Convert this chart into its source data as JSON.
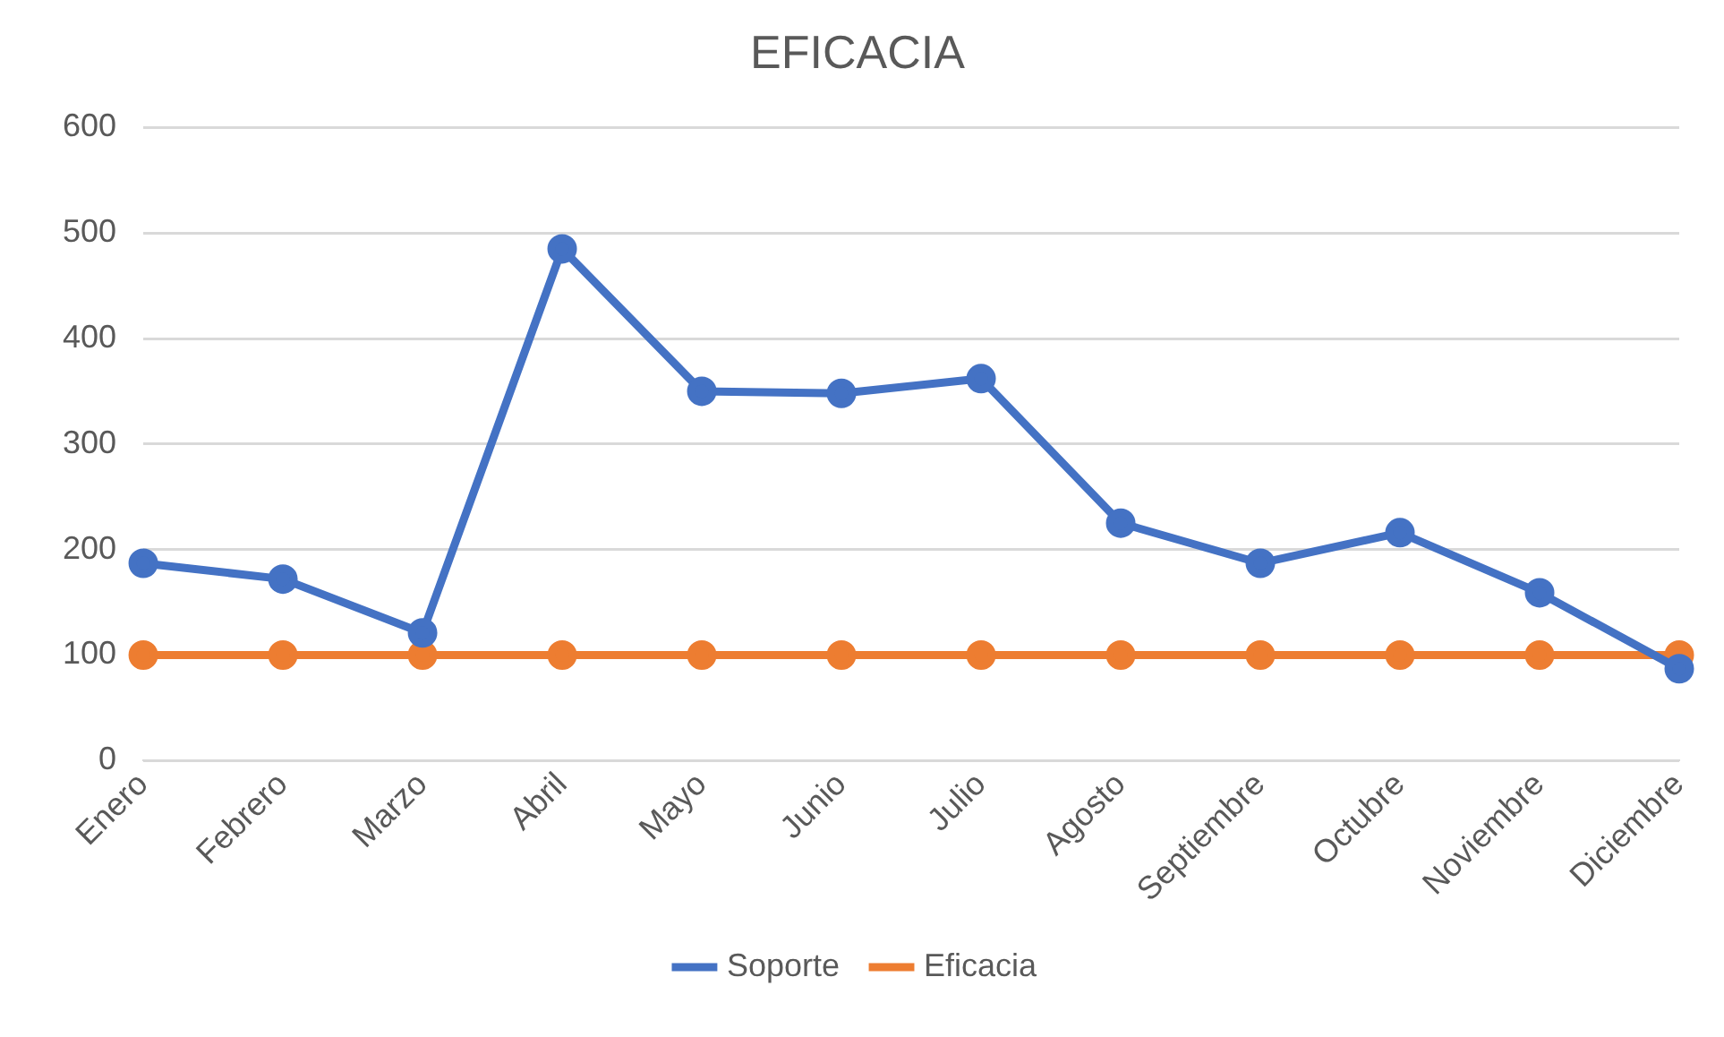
{
  "chart_data": {
    "type": "line",
    "title": "EFICACIA",
    "categories": [
      "Enero",
      "Febrero",
      "Marzo",
      "Abril",
      "Mayo",
      "Junio",
      "Julio",
      "Agosto",
      "Septiembre",
      "Octubre",
      "Noviembre",
      "Diciembre"
    ],
    "series": [
      {
        "name": "Soporte",
        "color": "#4472c4",
        "values": [
          187,
          172,
          121,
          485,
          350,
          348,
          362,
          225,
          187,
          216,
          159,
          87
        ]
      },
      {
        "name": "Eficacia",
        "color": "#ed7d31",
        "values": [
          100,
          100,
          100,
          100,
          100,
          100,
          100,
          100,
          100,
          100,
          100,
          100
        ]
      }
    ],
    "ylim": [
      0,
      600
    ],
    "yticks": [
      0,
      100,
      200,
      300,
      400,
      500,
      600
    ],
    "grid": "y",
    "legend": "bottom",
    "marker": "circle",
    "line_style": "solid"
  }
}
